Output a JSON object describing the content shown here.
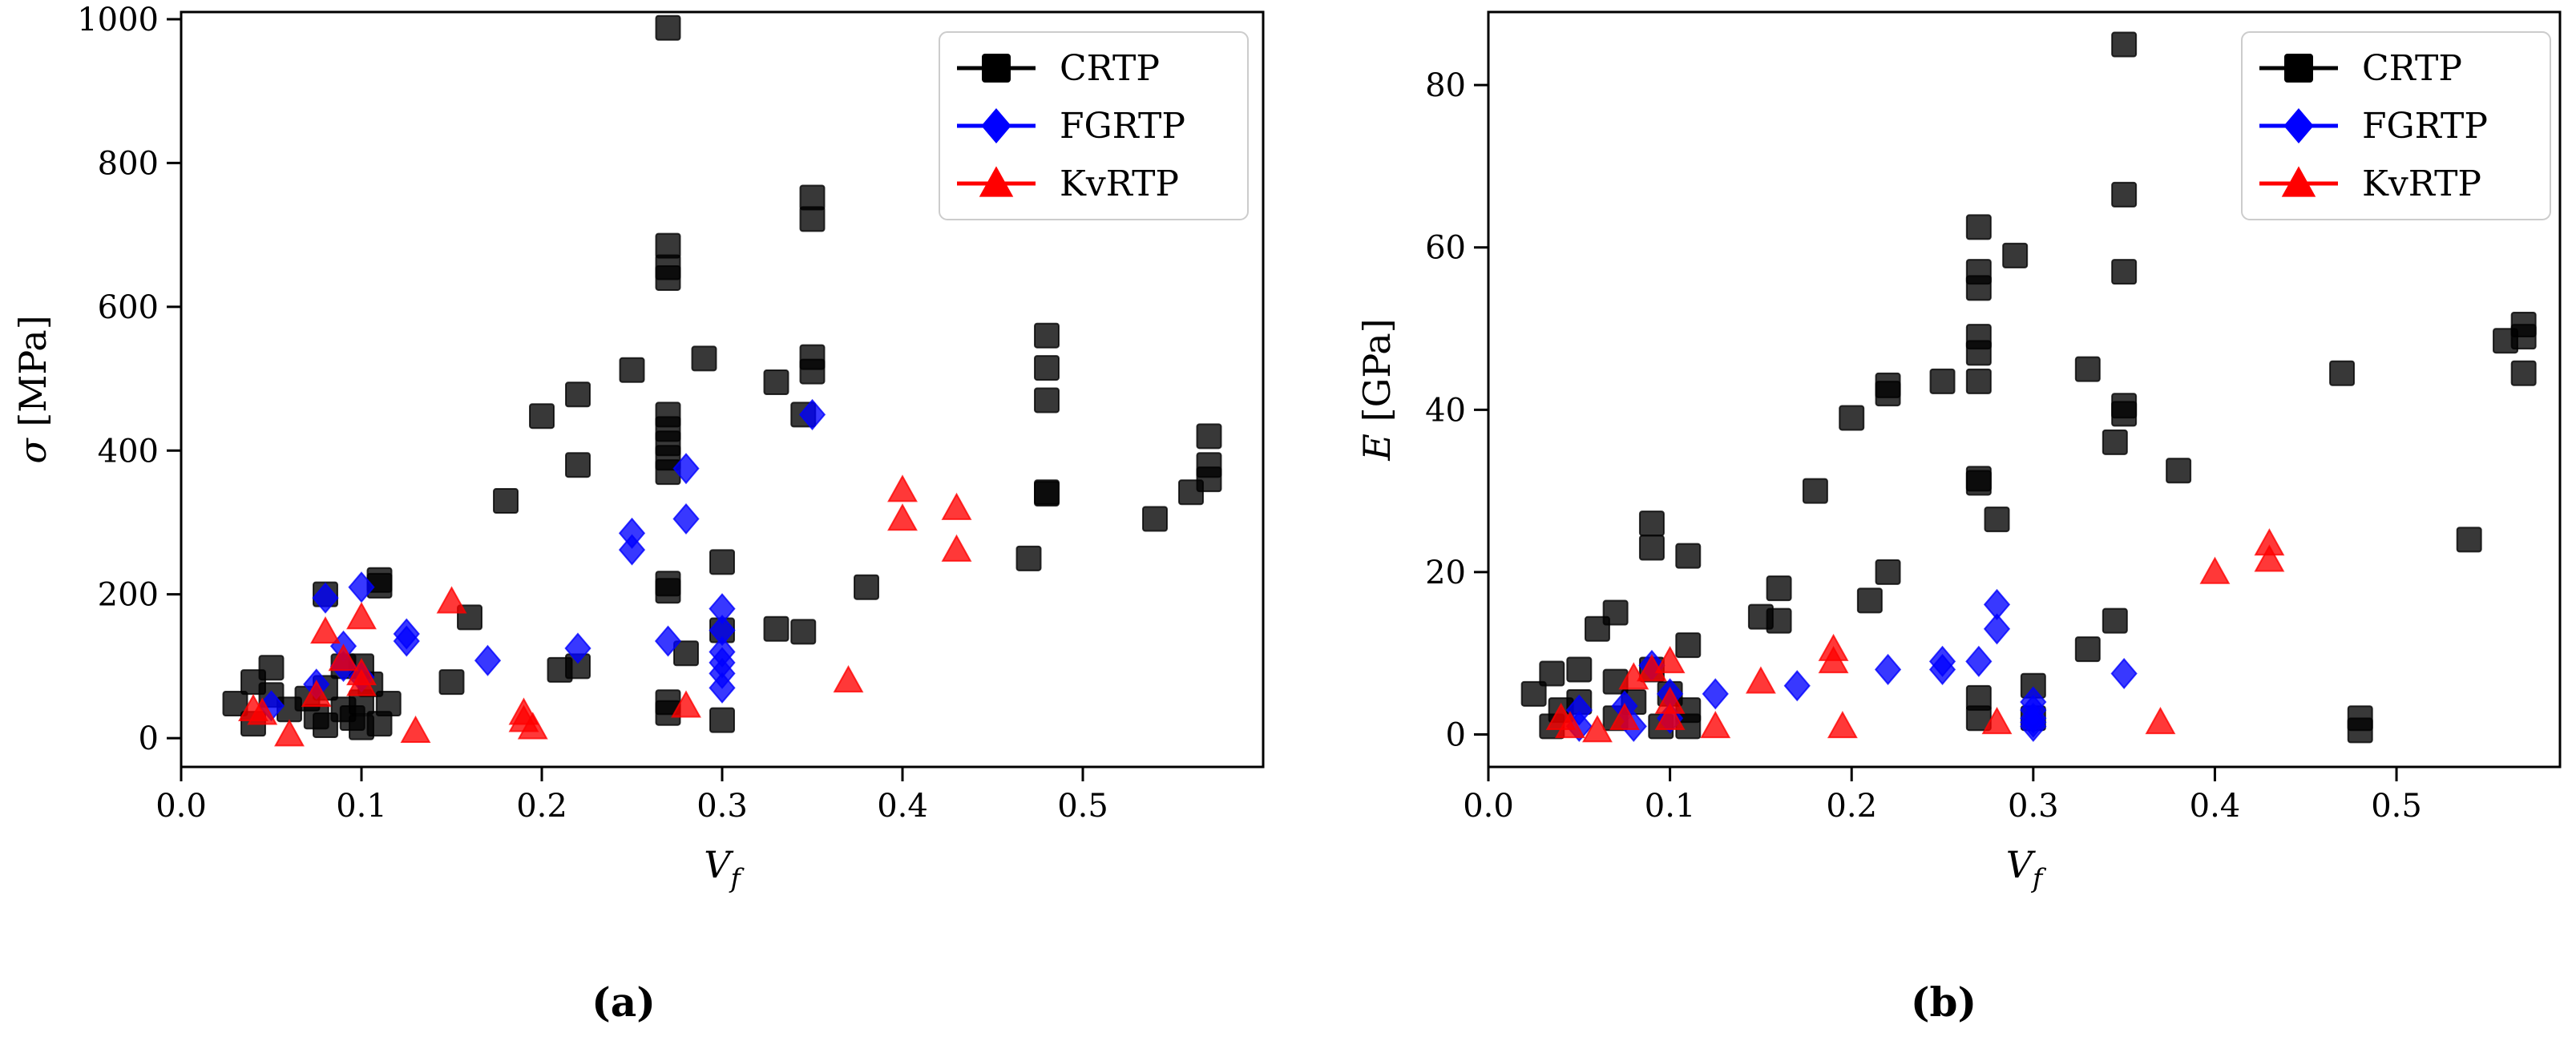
{
  "chart_data": [
    {
      "type": "scatter",
      "panel_label": "(a)",
      "xlabel": "V_f",
      "ylabel": "σ [MPa]",
      "xlim": [
        0.0,
        0.6
      ],
      "ylim": [
        -40,
        1010
      ],
      "xticks": [
        0.0,
        0.1,
        0.2,
        0.3,
        0.4,
        0.5
      ],
      "xtick_labels": [
        "0.0",
        "0.1",
        "0.2",
        "0.3",
        "0.4",
        "0.5"
      ],
      "yticks": [
        0,
        200,
        400,
        600,
        800,
        1000
      ],
      "ytick_labels": [
        "0",
        "200",
        "400",
        "600",
        "800",
        "1000"
      ],
      "legend_position": "top-right",
      "series": [
        {
          "name": "CRTP",
          "marker": "square",
          "color": "#000000",
          "points": [
            [
              0.03,
              48
            ],
            [
              0.04,
              20
            ],
            [
              0.04,
              78
            ],
            [
              0.05,
              98
            ],
            [
              0.05,
              60
            ],
            [
              0.06,
              40
            ],
            [
              0.07,
              55
            ],
            [
              0.075,
              30
            ],
            [
              0.08,
              200
            ],
            [
              0.08,
              70
            ],
            [
              0.08,
              18
            ],
            [
              0.09,
              100
            ],
            [
              0.09,
              40
            ],
            [
              0.095,
              28
            ],
            [
              0.1,
              100
            ],
            [
              0.1,
              50
            ],
            [
              0.1,
              15
            ],
            [
              0.105,
              75
            ],
            [
              0.11,
              220
            ],
            [
              0.11,
              212
            ],
            [
              0.11,
              20
            ],
            [
              0.115,
              48
            ],
            [
              0.15,
              78
            ],
            [
              0.16,
              168
            ],
            [
              0.18,
              330
            ],
            [
              0.2,
              448
            ],
            [
              0.21,
              95
            ],
            [
              0.22,
              380
            ],
            [
              0.22,
              478
            ],
            [
              0.22,
              100
            ],
            [
              0.25,
              512
            ],
            [
              0.27,
              988
            ],
            [
              0.27,
              685
            ],
            [
              0.27,
              655
            ],
            [
              0.27,
              640
            ],
            [
              0.27,
              450
            ],
            [
              0.27,
              430
            ],
            [
              0.27,
              410
            ],
            [
              0.27,
              390
            ],
            [
              0.27,
              370
            ],
            [
              0.27,
              215
            ],
            [
              0.27,
              205
            ],
            [
              0.27,
              50
            ],
            [
              0.27,
              35
            ],
            [
              0.28,
              118
            ],
            [
              0.29,
              528
            ],
            [
              0.3,
              245
            ],
            [
              0.3,
              150
            ],
            [
              0.3,
              25
            ],
            [
              0.33,
              495
            ],
            [
              0.33,
              152
            ],
            [
              0.345,
              148
            ],
            [
              0.345,
              450
            ],
            [
              0.35,
              752
            ],
            [
              0.35,
              722
            ],
            [
              0.35,
              530
            ],
            [
              0.35,
              510
            ],
            [
              0.38,
              210
            ],
            [
              0.47,
              250
            ],
            [
              0.48,
              560
            ],
            [
              0.48,
              515
            ],
            [
              0.48,
              470
            ],
            [
              0.48,
              342
            ],
            [
              0.48,
              340
            ],
            [
              0.54,
              305
            ],
            [
              0.56,
              342
            ],
            [
              0.57,
              420
            ],
            [
              0.57,
              380
            ],
            [
              0.57,
              360
            ]
          ]
        },
        {
          "name": "FGRTP",
          "marker": "diamond",
          "color": "#0000ff",
          "points": [
            [
              0.05,
              45
            ],
            [
              0.075,
              75
            ],
            [
              0.08,
              195
            ],
            [
              0.09,
              128
            ],
            [
              0.09,
              100
            ],
            [
              0.1,
              210
            ],
            [
              0.1,
              85
            ],
            [
              0.125,
              145
            ],
            [
              0.125,
              135
            ],
            [
              0.17,
              108
            ],
            [
              0.22,
              125
            ],
            [
              0.25,
              285
            ],
            [
              0.25,
              262
            ],
            [
              0.27,
              135
            ],
            [
              0.28,
              375
            ],
            [
              0.28,
              305
            ],
            [
              0.3,
              180
            ],
            [
              0.3,
              150
            ],
            [
              0.3,
              120
            ],
            [
              0.3,
              105
            ],
            [
              0.3,
              90
            ],
            [
              0.3,
              70
            ],
            [
              0.35,
              450
            ]
          ]
        },
        {
          "name": "KvRTP",
          "marker": "triangle",
          "color": "#ff0000",
          "points": [
            [
              0.04,
              40
            ],
            [
              0.045,
              35
            ],
            [
              0.06,
              5
            ],
            [
              0.075,
              60
            ],
            [
              0.08,
              148
            ],
            [
              0.09,
              110
            ],
            [
              0.1,
              168
            ],
            [
              0.1,
              90
            ],
            [
              0.1,
              75
            ],
            [
              0.13,
              10
            ],
            [
              0.15,
              190
            ],
            [
              0.19,
              35
            ],
            [
              0.19,
              25
            ],
            [
              0.195,
              15
            ],
            [
              0.28,
              45
            ],
            [
              0.37,
              80
            ],
            [
              0.4,
              345
            ],
            [
              0.4,
              305
            ],
            [
              0.43,
              320
            ],
            [
              0.43,
              262
            ]
          ]
        }
      ]
    },
    {
      "type": "scatter",
      "panel_label": "(b)",
      "xlabel": "V_f",
      "ylabel": "E [GPa]",
      "xlim": [
        0.0,
        0.59
      ],
      "ylim": [
        -4,
        89
      ],
      "xticks": [
        0.0,
        0.1,
        0.2,
        0.3,
        0.4,
        0.5
      ],
      "xtick_labels": [
        "0.0",
        "0.1",
        "0.2",
        "0.3",
        "0.4",
        "0.5"
      ],
      "yticks": [
        0,
        20,
        40,
        60,
        80
      ],
      "ytick_labels": [
        "0",
        "20",
        "40",
        "60",
        "80"
      ],
      "legend_position": "top-right",
      "series": [
        {
          "name": "CRTP",
          "marker": "square",
          "color": "#000000",
          "points": [
            [
              0.025,
              5
            ],
            [
              0.035,
              7.5
            ],
            [
              0.035,
              1
            ],
            [
              0.04,
              3
            ],
            [
              0.05,
              8
            ],
            [
              0.05,
              4
            ],
            [
              0.06,
              13
            ],
            [
              0.07,
              15
            ],
            [
              0.07,
              6.5
            ],
            [
              0.07,
              2
            ],
            [
              0.08,
              4
            ],
            [
              0.09,
              26
            ],
            [
              0.09,
              23
            ],
            [
              0.09,
              8
            ],
            [
              0.095,
              1
            ],
            [
              0.1,
              5
            ],
            [
              0.11,
              22
            ],
            [
              0.11,
              11
            ],
            [
              0.11,
              3
            ],
            [
              0.11,
              1
            ],
            [
              0.15,
              14.5
            ],
            [
              0.16,
              14
            ],
            [
              0.16,
              18
            ],
            [
              0.18,
              30
            ],
            [
              0.2,
              39
            ],
            [
              0.21,
              16.5
            ],
            [
              0.22,
              43
            ],
            [
              0.22,
              42
            ],
            [
              0.22,
              20
            ],
            [
              0.25,
              43.5
            ],
            [
              0.27,
              62.5
            ],
            [
              0.27,
              57
            ],
            [
              0.27,
              55
            ],
            [
              0.27,
              49
            ],
            [
              0.27,
              47
            ],
            [
              0.27,
              43.5
            ],
            [
              0.27,
              31.5
            ],
            [
              0.27,
              31
            ],
            [
              0.27,
              4.5
            ],
            [
              0.27,
              2
            ],
            [
              0.28,
              26.5
            ],
            [
              0.29,
              59
            ],
            [
              0.3,
              6
            ],
            [
              0.3,
              2
            ],
            [
              0.33,
              45
            ],
            [
              0.33,
              10.5
            ],
            [
              0.345,
              36
            ],
            [
              0.345,
              14
            ],
            [
              0.35,
              85
            ],
            [
              0.35,
              66.5
            ],
            [
              0.35,
              57
            ],
            [
              0.35,
              40.5
            ],
            [
              0.35,
              39.5
            ],
            [
              0.38,
              32.5
            ],
            [
              0.47,
              44.5
            ],
            [
              0.48,
              2
            ],
            [
              0.48,
              0.5
            ],
            [
              0.54,
              24
            ],
            [
              0.56,
              48.5
            ],
            [
              0.57,
              50.5
            ],
            [
              0.57,
              49
            ],
            [
              0.57,
              44.5
            ]
          ]
        },
        {
          "name": "FGRTP",
          "marker": "diamond",
          "color": "#0000ff",
          "points": [
            [
              0.05,
              3
            ],
            [
              0.05,
              1
            ],
            [
              0.075,
              3.5
            ],
            [
              0.08,
              1
            ],
            [
              0.09,
              8.5
            ],
            [
              0.1,
              5
            ],
            [
              0.1,
              2
            ],
            [
              0.125,
              5
            ],
            [
              0.17,
              6
            ],
            [
              0.22,
              8
            ],
            [
              0.25,
              9
            ],
            [
              0.25,
              8
            ],
            [
              0.27,
              9
            ],
            [
              0.28,
              16
            ],
            [
              0.28,
              13
            ],
            [
              0.3,
              4
            ],
            [
              0.3,
              3
            ],
            [
              0.3,
              2
            ],
            [
              0.3,
              1.5
            ],
            [
              0.3,
              1
            ],
            [
              0.35,
              7.5
            ]
          ]
        },
        {
          "name": "KvRTP",
          "marker": "triangle",
          "color": "#ff0000",
          "points": [
            [
              0.04,
              2
            ],
            [
              0.045,
              1
            ],
            [
              0.06,
              0.5
            ],
            [
              0.075,
              2
            ],
            [
              0.08,
              7
            ],
            [
              0.09,
              8
            ],
            [
              0.1,
              9
            ],
            [
              0.1,
              4
            ],
            [
              0.1,
              2
            ],
            [
              0.125,
              1
            ],
            [
              0.15,
              6.5
            ],
            [
              0.19,
              10.5
            ],
            [
              0.19,
              9
            ],
            [
              0.195,
              1
            ],
            [
              0.28,
              1.5
            ],
            [
              0.37,
              1.5
            ],
            [
              0.4,
              20
            ],
            [
              0.43,
              23.5
            ],
            [
              0.43,
              21.5
            ]
          ]
        }
      ]
    }
  ]
}
